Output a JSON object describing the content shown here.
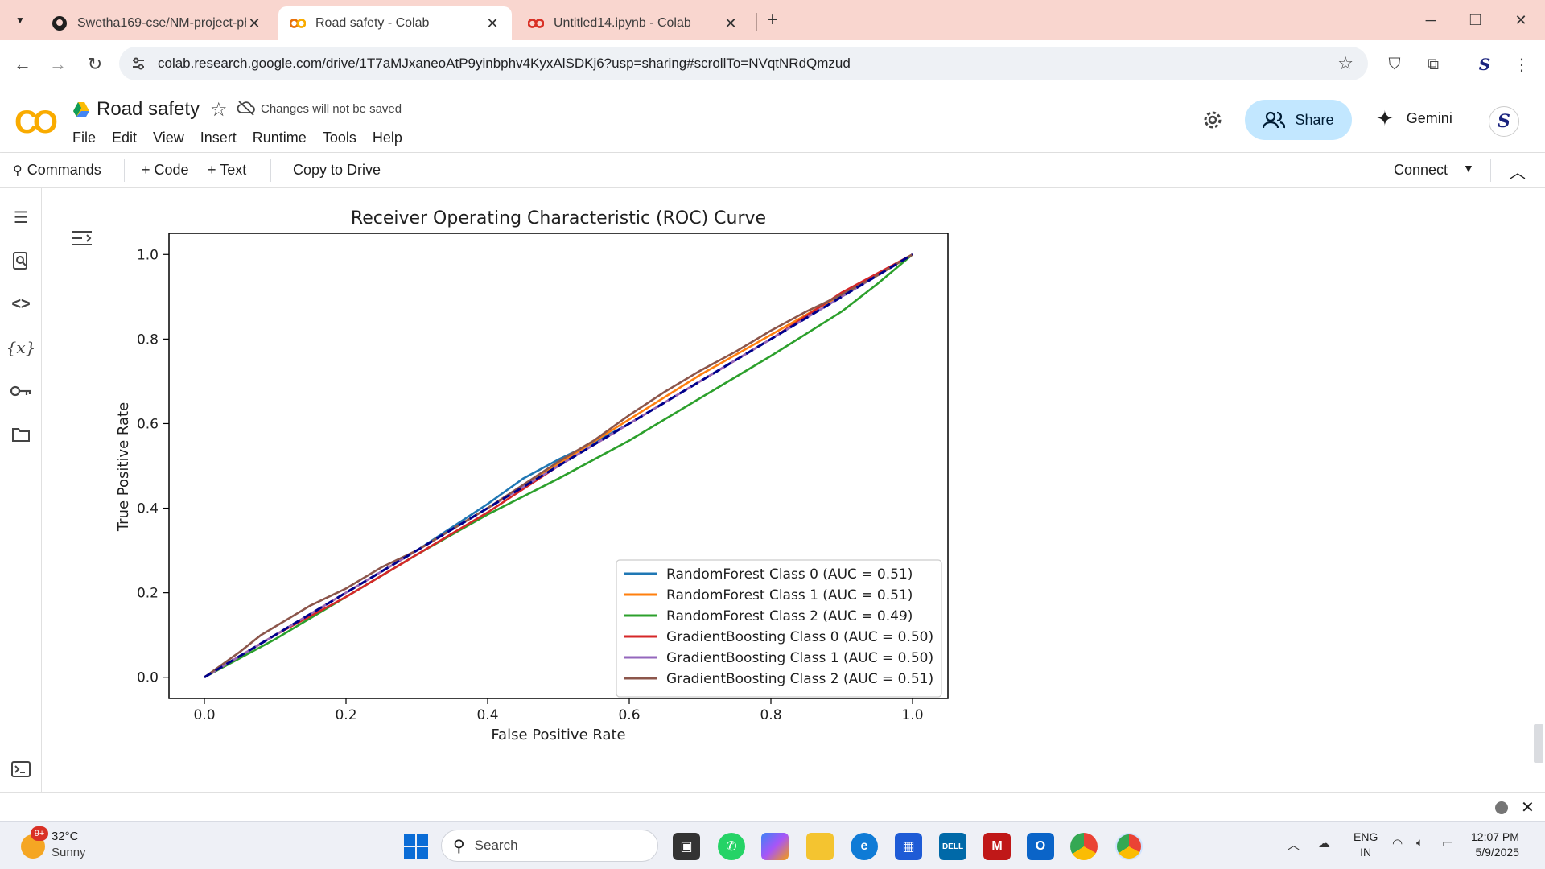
{
  "browser": {
    "tabs": [
      {
        "title": "Swetha169-cse/NM-project-ph",
        "icon": "github-icon"
      },
      {
        "title": "Road safety - Colab",
        "icon": "colab-icon",
        "active": true
      },
      {
        "title": "Untitled14.ipynb - Colab",
        "icon": "colab-icon"
      }
    ],
    "url": "colab.research.google.com/drive/1T7aMJxaneoAtP9yinbphv4KyxAlSDKj6?usp=sharing#scrollTo=NVqtNRdQmzud"
  },
  "colab": {
    "logo": "CO",
    "notebook_title": "Road safety",
    "save_status": "Changes will not be saved",
    "menu": [
      "File",
      "Edit",
      "View",
      "Insert",
      "Runtime",
      "Tools",
      "Help"
    ],
    "share_label": "Share",
    "gemini_label": "Gemini",
    "toolbar": {
      "commands": "Commands",
      "code": "+ Code",
      "text": "+ Text",
      "copy_to_drive": "Copy to Drive",
      "connect": "Connect"
    }
  },
  "chart_data": {
    "type": "line",
    "title": "Receiver Operating Characteristic (ROC) Curve",
    "xlabel": "False Positive Rate",
    "ylabel": "True Positive Rate",
    "xlim": [
      -0.05,
      1.05
    ],
    "ylim": [
      -0.05,
      1.05
    ],
    "xticks": [
      "0.0",
      "0.2",
      "0.4",
      "0.6",
      "0.8",
      "1.0"
    ],
    "yticks": [
      "0.0",
      "0.2",
      "0.4",
      "0.6",
      "0.8",
      "1.0"
    ],
    "legend_position": "lower-right",
    "series": [
      {
        "name": "RandomForest Class 0 (AUC = 0.51)",
        "color": "#1f77b4",
        "x": [
          0,
          0.1,
          0.2,
          0.3,
          0.4,
          0.45,
          0.5,
          0.55,
          0.6,
          0.7,
          0.8,
          0.9,
          1.0
        ],
        "y": [
          0,
          0.1,
          0.2,
          0.3,
          0.41,
          0.47,
          0.515,
          0.555,
          0.6,
          0.7,
          0.8,
          0.9,
          1.0
        ]
      },
      {
        "name": "RandomForest Class 1 (AUC = 0.51)",
        "color": "#ff7f0e",
        "x": [
          0,
          0.1,
          0.2,
          0.3,
          0.4,
          0.5,
          0.6,
          0.7,
          0.8,
          0.9,
          1.0
        ],
        "y": [
          0,
          0.1,
          0.2,
          0.3,
          0.4,
          0.505,
          0.61,
          0.715,
          0.81,
          0.905,
          1.0
        ]
      },
      {
        "name": "RandomForest Class 2 (AUC = 0.49)",
        "color": "#2ca02c",
        "x": [
          0,
          0.1,
          0.2,
          0.3,
          0.4,
          0.5,
          0.6,
          0.7,
          0.8,
          0.9,
          0.95,
          1.0
        ],
        "y": [
          0,
          0.09,
          0.19,
          0.29,
          0.385,
          0.47,
          0.56,
          0.66,
          0.76,
          0.865,
          0.93,
          1.0
        ]
      },
      {
        "name": "GradientBoosting Class 0 (AUC = 0.50)",
        "color": "#d62728",
        "x": [
          0,
          0.1,
          0.2,
          0.3,
          0.4,
          0.5,
          0.6,
          0.7,
          0.8,
          0.9,
          1.0
        ],
        "y": [
          0,
          0.1,
          0.19,
          0.29,
          0.39,
          0.5,
          0.6,
          0.7,
          0.8,
          0.91,
          1.0
        ]
      },
      {
        "name": "GradientBoosting Class 1 (AUC = 0.50)",
        "color": "#9467bd",
        "x": [
          0,
          0.1,
          0.2,
          0.3,
          0.4,
          0.5,
          0.6,
          0.7,
          0.8,
          0.9,
          1.0
        ],
        "y": [
          0,
          0.1,
          0.2,
          0.3,
          0.4,
          0.5,
          0.6,
          0.7,
          0.8,
          0.9,
          1.0
        ]
      },
      {
        "name": "GradientBoosting Class 2 (AUC = 0.51)",
        "color": "#8c564b",
        "x": [
          0,
          0.05,
          0.08,
          0.1,
          0.15,
          0.2,
          0.25,
          0.3,
          0.35,
          0.4,
          0.45,
          0.5,
          0.55,
          0.6,
          0.65,
          0.7,
          0.75,
          0.8,
          0.85,
          0.9,
          0.95,
          1.0
        ],
        "y": [
          0,
          0.06,
          0.1,
          0.12,
          0.17,
          0.21,
          0.26,
          0.3,
          0.35,
          0.4,
          0.455,
          0.51,
          0.56,
          0.62,
          0.675,
          0.725,
          0.77,
          0.82,
          0.865,
          0.905,
          0.95,
          1.0
        ]
      },
      {
        "name": "",
        "color": "#00008b",
        "dashed": true,
        "x": [
          0,
          1
        ],
        "y": [
          0,
          1
        ]
      }
    ]
  },
  "taskbar": {
    "weather_temp": "32°C",
    "weather_cond": "Sunny",
    "weather_badge": "9+",
    "search_label": "Search",
    "lang_top": "ENG",
    "lang_bottom": "IN",
    "time": "12:07 PM",
    "date": "5/9/2025"
  }
}
